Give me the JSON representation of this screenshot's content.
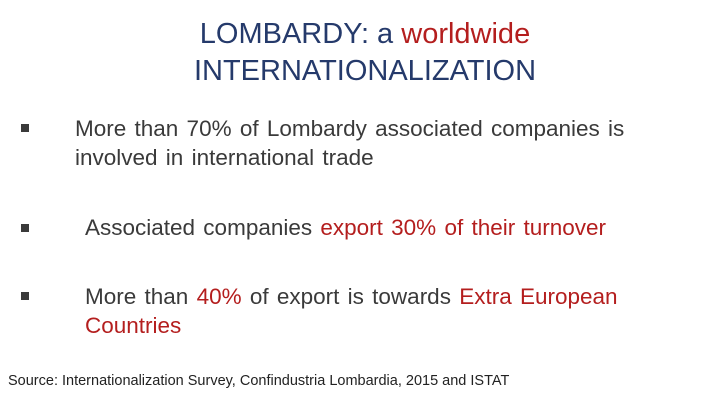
{
  "title": {
    "lines": [
      {
        "segments": [
          {
            "text": "LOMBARDY: a ",
            "highlight": false
          },
          {
            "text": "worldwide",
            "highlight": true
          }
        ]
      },
      {
        "segments": [
          {
            "text": "INTERNATIONALIZATION",
            "highlight": false
          }
        ]
      }
    ]
  },
  "bullets": [
    {
      "segments": [
        {
          "text": "More than 70% of Lombardy associated companies is involved in international trade",
          "highlight": false
        }
      ]
    },
    {
      "segments": [
        {
          "text": "Associated companies ",
          "highlight": false
        },
        {
          "text": "export 30% of their turnover",
          "highlight": true
        }
      ]
    },
    {
      "segments": [
        {
          "text": "More than ",
          "highlight": false
        },
        {
          "text": "40%",
          "highlight": true
        },
        {
          "text": " of export is towards ",
          "highlight": false
        },
        {
          "text": "Extra European Countries",
          "highlight": true
        }
      ]
    }
  ],
  "source": "Source: Internationalization Survey, Confindustria Lombardia, 2015 and ISTAT"
}
